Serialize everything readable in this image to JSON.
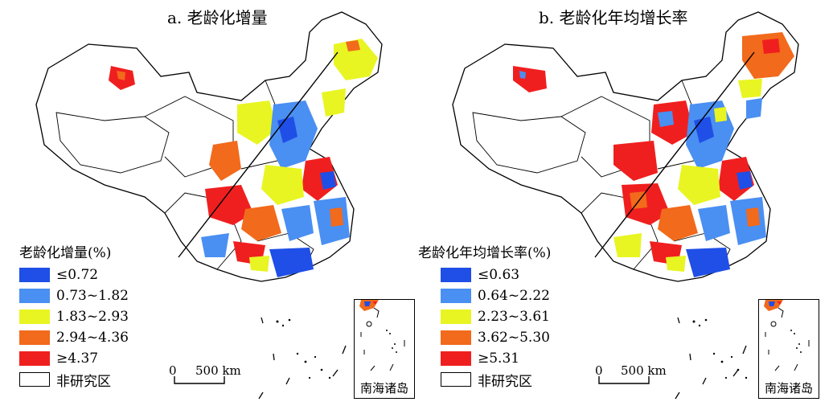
{
  "panels": [
    {
      "id": "a",
      "title": "a. 老龄化增量",
      "legend_title": "老龄化增量(%)",
      "legend": [
        {
          "label": "≤0.72",
          "color": "#1f4fe6"
        },
        {
          "label": "0.73~1.82",
          "color": "#4a8ff2"
        },
        {
          "label": "1.83~2.93",
          "color": "#e8f522"
        },
        {
          "label": "2.94~4.36",
          "color": "#f26a1b"
        },
        {
          "label": "≥4.37",
          "color": "#f01f1f"
        }
      ],
      "non_study_label": "非研究区",
      "scale_zero": "0",
      "scale_label": "500 km",
      "inset_label": "南海诸岛"
    },
    {
      "id": "b",
      "title": "b. 老龄化年均增长率",
      "legend_title": "老龄化年均增长率(%)",
      "legend": [
        {
          "label": "≤0.63",
          "color": "#1f4fe6"
        },
        {
          "label": "0.64~2.22",
          "color": "#4a8ff2"
        },
        {
          "label": "2.23~3.61",
          "color": "#e8f522"
        },
        {
          "label": "3.62~5.30",
          "color": "#f26a1b"
        },
        {
          "label": "≥5.31",
          "color": "#f01f1f"
        }
      ],
      "non_study_label": "非研究区",
      "scale_zero": "0",
      "scale_label": "500 km",
      "inset_label": "南海诸岛"
    }
  ]
}
